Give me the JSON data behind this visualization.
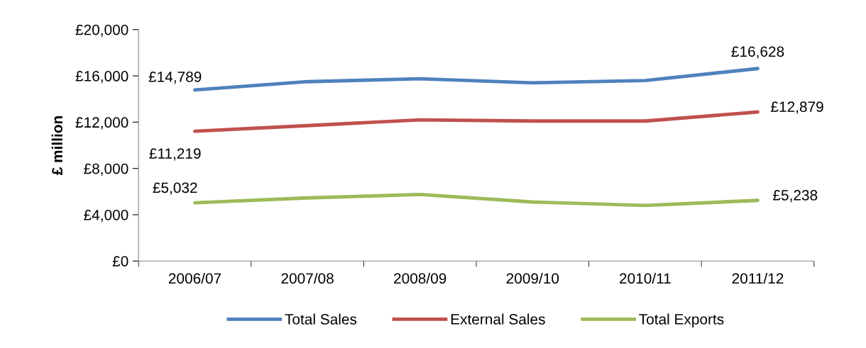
{
  "chart_data": {
    "type": "line",
    "ylabel": "£ million",
    "categories": [
      "2006/07",
      "2007/08",
      "2008/09",
      "2009/10",
      "2010/11",
      "2011/12"
    ],
    "series": [
      {
        "name": "Total Sales",
        "color": "#4f81bd",
        "values": [
          14789,
          15500,
          15750,
          15400,
          15600,
          16628
        ],
        "value_labels": [
          "£14,789",
          null,
          null,
          null,
          null,
          "£16,628"
        ]
      },
      {
        "name": "External Sales",
        "color": "#c0504d",
        "values": [
          11219,
          11700,
          12200,
          12100,
          12100,
          12879
        ],
        "value_labels": [
          "£11,219",
          null,
          null,
          null,
          null,
          "£12,879"
        ]
      },
      {
        "name": "Total Exports",
        "color": "#9bbb59",
        "values": [
          5032,
          5450,
          5750,
          5100,
          4800,
          5238
        ],
        "value_labels": [
          "£5,032",
          null,
          null,
          null,
          null,
          "£5,238"
        ]
      }
    ],
    "ylim": [
      0,
      20000
    ],
    "yticks": [
      {
        "value": 0,
        "label": "£0"
      },
      {
        "value": 4000,
        "label": "£4,000"
      },
      {
        "value": 8000,
        "label": "£8,000"
      },
      {
        "value": 12000,
        "label": "£12,000"
      },
      {
        "value": 16000,
        "label": "£16,000"
      },
      {
        "value": 20000,
        "label": "£20,000"
      }
    ],
    "grid": false,
    "legend": "bottom",
    "marker": "none",
    "line_style": "solid"
  }
}
